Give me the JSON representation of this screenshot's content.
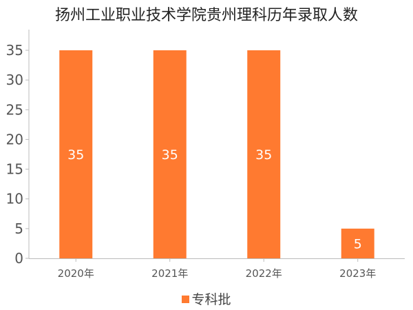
{
  "chart_data": {
    "type": "bar",
    "title": "扬州工业职业技术学院贵州理科历年录取人数",
    "categories": [
      "2020年",
      "2021年",
      "2022年",
      "2023年"
    ],
    "series": [
      {
        "name": "专科批",
        "values": [
          35,
          35,
          35,
          5
        ]
      }
    ],
    "xlabel": "",
    "ylabel": "",
    "ylim": [
      0,
      35
    ],
    "yticks": [
      0,
      5,
      10,
      15,
      20,
      25,
      30,
      35
    ],
    "grid": false,
    "legend_position": "bottom-center",
    "data_labels": true,
    "colors": {
      "bar": "#FF7A30",
      "axis": "#BBBBBB",
      "tick_text": "#555555",
      "label_text": "#FFFFFF"
    }
  }
}
